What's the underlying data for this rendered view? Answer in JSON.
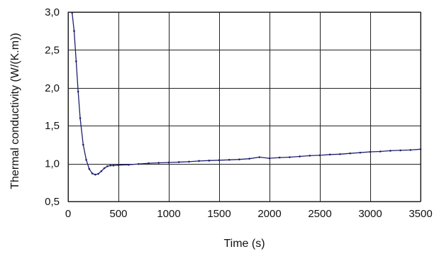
{
  "chart_data": {
    "type": "line",
    "title": "",
    "xlabel": "Time (s)",
    "ylabel": "Thermal conductivity (W/(K.m))",
    "xlim": [
      0,
      3500
    ],
    "ylim": [
      0.5,
      3.0
    ],
    "x_ticks": [
      0,
      500,
      1000,
      1500,
      2000,
      2500,
      3000,
      3500
    ],
    "y_ticks": [
      0.5,
      1.0,
      1.5,
      2.0,
      2.5,
      3.0
    ],
    "x_tick_labels": [
      "0",
      "500",
      "1000",
      "1500",
      "2000",
      "2500",
      "3000",
      "3500"
    ],
    "y_tick_labels": [
      "0,5",
      "1,0",
      "1,5",
      "2,0",
      "2,5",
      "3,0"
    ],
    "grid": true,
    "legend": "none",
    "colors": {
      "series": "#1f1f6e",
      "grid": "#222222",
      "text": "#111111"
    },
    "series": [
      {
        "x": [
          40,
          60,
          80,
          100,
          120,
          150,
          180,
          210,
          240,
          270,
          300,
          330,
          360,
          390,
          420,
          450,
          500,
          600,
          700,
          800,
          900,
          1000,
          1100,
          1200,
          1300,
          1400,
          1500,
          1600,
          1700,
          1800,
          1900,
          2000,
          2100,
          2200,
          2300,
          2400,
          2500,
          2600,
          2700,
          2800,
          2900,
          3000,
          3100,
          3200,
          3300,
          3400,
          3500
        ],
        "y": [
          2.99,
          2.75,
          2.35,
          1.95,
          1.6,
          1.25,
          1.05,
          0.93,
          0.87,
          0.855,
          0.865,
          0.9,
          0.94,
          0.965,
          0.975,
          0.975,
          0.98,
          0.985,
          0.995,
          1.005,
          1.01,
          1.015,
          1.02,
          1.025,
          1.035,
          1.04,
          1.045,
          1.05,
          1.055,
          1.065,
          1.085,
          1.07,
          1.08,
          1.085,
          1.095,
          1.105,
          1.11,
          1.12,
          1.125,
          1.135,
          1.145,
          1.155,
          1.16,
          1.17,
          1.175,
          1.18,
          1.19
        ]
      }
    ]
  }
}
